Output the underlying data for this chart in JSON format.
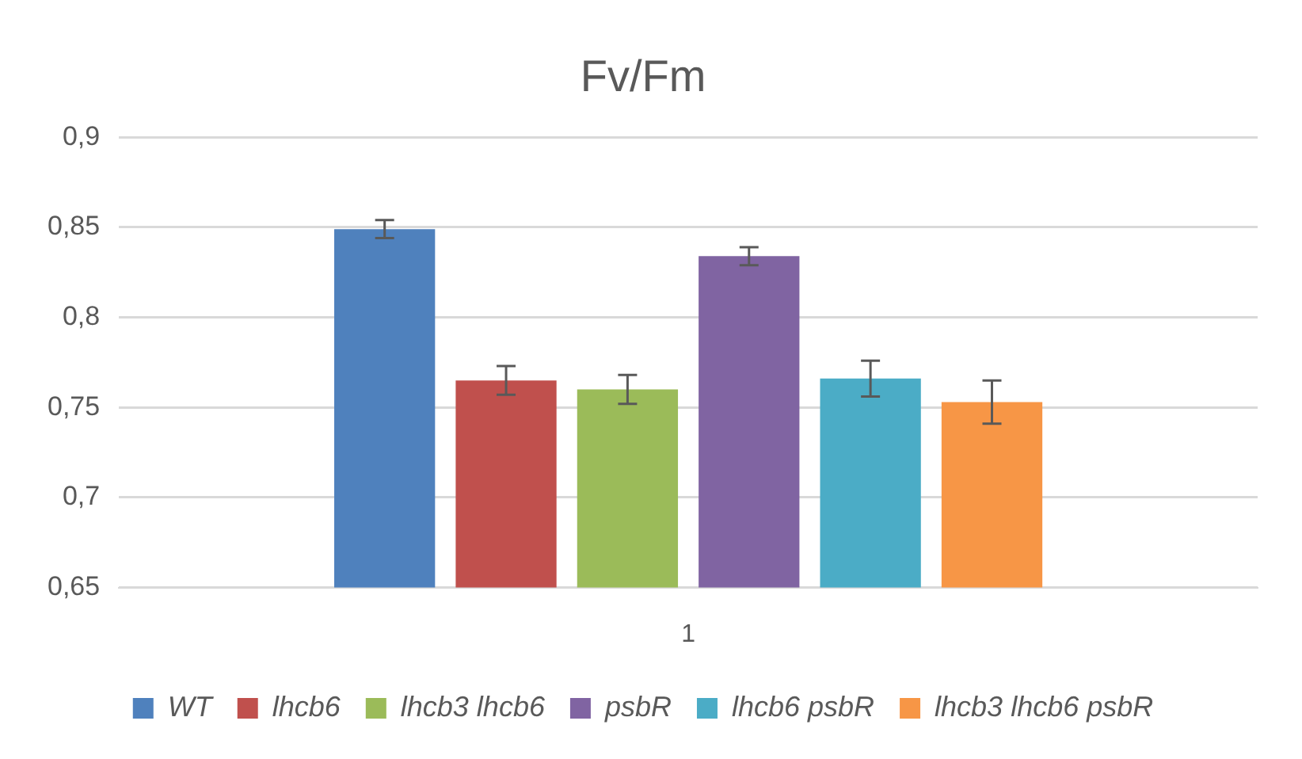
{
  "chart_data": {
    "type": "bar",
    "title": "Fv/Fm",
    "categories": [
      "1"
    ],
    "series": [
      {
        "name": "WT",
        "color": "#4f81bd",
        "values": [
          0.849
        ],
        "errors": [
          0.005
        ]
      },
      {
        "name": "lhcb6",
        "color": "#c0504d",
        "values": [
          0.765
        ],
        "errors": [
          0.008
        ]
      },
      {
        "name": "lhcb3 lhcb6",
        "color": "#9bbb59",
        "values": [
          0.76
        ],
        "errors": [
          0.008
        ]
      },
      {
        "name": "psbR",
        "color": "#8064a2",
        "values": [
          0.834
        ],
        "errors": [
          0.005
        ]
      },
      {
        "name": "lhcb6 psbR",
        "color": "#4bacc6",
        "values": [
          0.766
        ],
        "errors": [
          0.01
        ]
      },
      {
        "name": "lhcb3 lhcb6 psbR",
        "color": "#f79646",
        "values": [
          0.753
        ],
        "errors": [
          0.012
        ]
      }
    ],
    "ylim": [
      0.65,
      0.9
    ],
    "yticks": [
      {
        "value": 0.65,
        "label": "0,65"
      },
      {
        "value": 0.7,
        "label": "0,7"
      },
      {
        "value": 0.75,
        "label": "0,75"
      },
      {
        "value": 0.8,
        "label": "0,8"
      },
      {
        "value": 0.85,
        "label": "0,85"
      },
      {
        "value": 0.9,
        "label": "0,9"
      }
    ],
    "grid": "y",
    "legend": "bottom"
  }
}
